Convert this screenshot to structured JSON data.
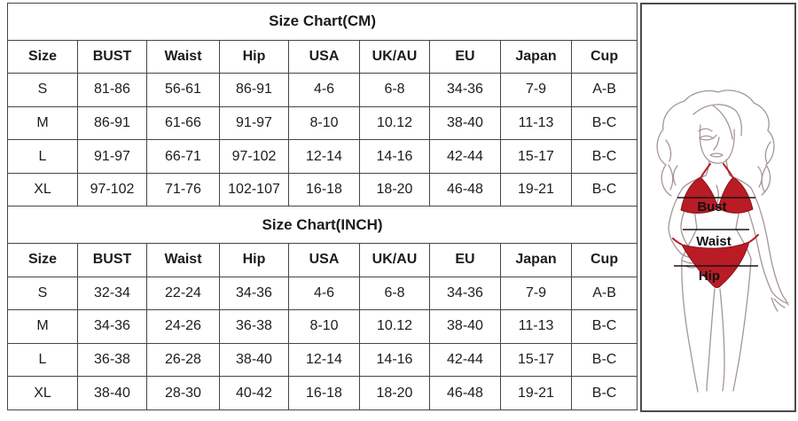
{
  "colors": {
    "bikini_red": "#b91c25",
    "table_border": "#454545",
    "text": "#1c1c1c"
  },
  "size_charts": [
    {
      "title": "Size Chart(CM)",
      "headers": [
        "Size",
        "BUST",
        "Waist",
        "Hip",
        "USA",
        "UK/AU",
        "EU",
        "Japan",
        "Cup"
      ],
      "rows": [
        [
          "S",
          "81-86",
          "56-61",
          "86-91",
          "4-6",
          "6-8",
          "34-36",
          "7-9",
          "A-B"
        ],
        [
          "M",
          "86-91",
          "61-66",
          "91-97",
          "8-10",
          "10.12",
          "38-40",
          "11-13",
          "B-C"
        ],
        [
          "L",
          "91-97",
          "66-71",
          "97-102",
          "12-14",
          "14-16",
          "42-44",
          "15-17",
          "B-C"
        ],
        [
          "XL",
          "97-102",
          "71-76",
          "102-107",
          "16-18",
          "18-20",
          "46-48",
          "19-21",
          "B-C"
        ]
      ]
    },
    {
      "title": "Size Chart(INCH)",
      "headers": [
        "Size",
        "BUST",
        "Waist",
        "Hip",
        "USA",
        "UK/AU",
        "EU",
        "Japan",
        "Cup"
      ],
      "rows": [
        [
          "S",
          "32-34",
          "22-24",
          "34-36",
          "4-6",
          "6-8",
          "34-36",
          "7-9",
          "A-B"
        ],
        [
          "M",
          "34-36",
          "24-26",
          "36-38",
          "8-10",
          "10.12",
          "38-40",
          "11-13",
          "B-C"
        ],
        [
          "L",
          "36-38",
          "26-28",
          "38-40",
          "12-14",
          "14-16",
          "42-44",
          "15-17",
          "B-C"
        ],
        [
          "XL",
          "38-40",
          "28-30",
          "40-42",
          "16-18",
          "18-20",
          "46-48",
          "19-21",
          "B-C"
        ]
      ]
    }
  ],
  "figure": {
    "labels": {
      "bust": "Bust",
      "waist": "Waist",
      "hip": "Hip"
    }
  }
}
